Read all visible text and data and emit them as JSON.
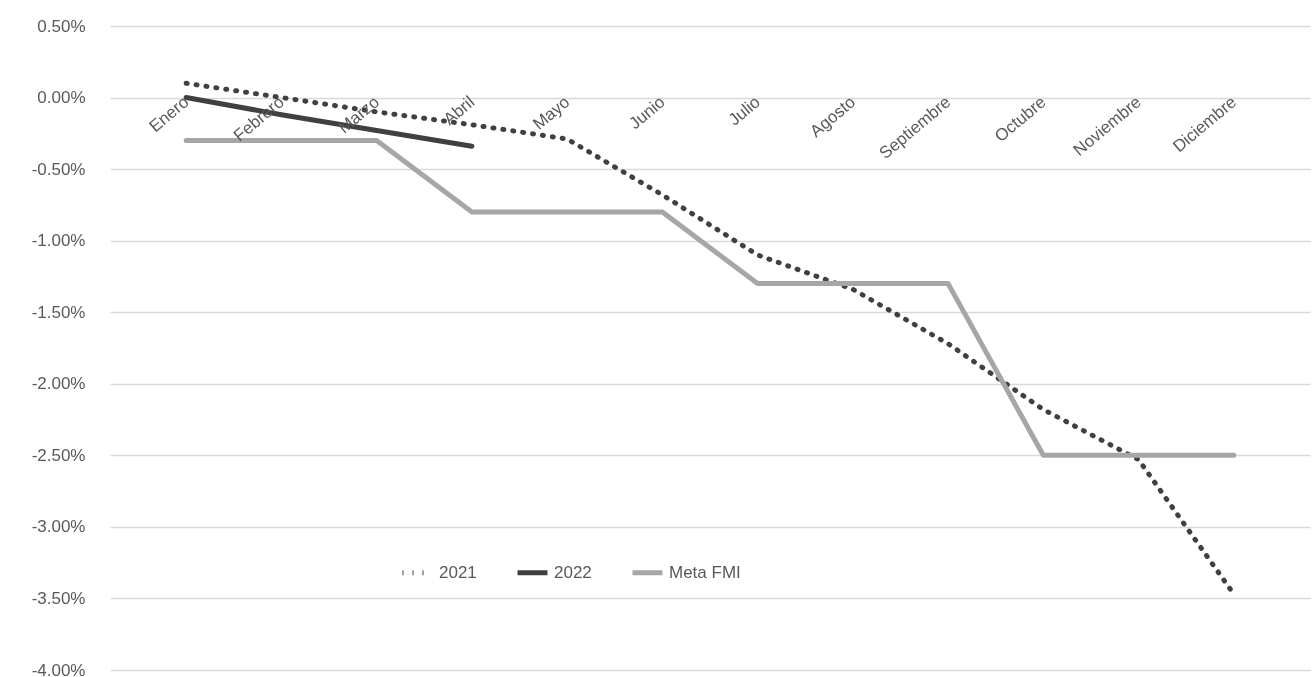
{
  "chart_data": {
    "type": "line",
    "categories": [
      "Enero",
      "Febrero",
      "Marzo",
      "Abril",
      "Mayo",
      "Junio",
      "Julio",
      "Agosto",
      "Septiembre",
      "Octubre",
      "Noviembre",
      "Diciembre"
    ],
    "series": [
      {
        "name": "2021",
        "color": "#404040",
        "line_style": "dotted",
        "values": [
          0.1,
          0.0,
          -0.1,
          -0.19,
          -0.29,
          -0.68,
          -1.1,
          -1.34,
          -1.72,
          -2.18,
          -2.53,
          -3.47
        ]
      },
      {
        "name": "2022",
        "color": "#404040",
        "line_style": "solid",
        "values": [
          0.0,
          -0.12,
          -0.23,
          -0.34,
          null,
          null,
          null,
          null,
          null,
          null,
          null,
          null
        ]
      },
      {
        "name": "Meta FMI",
        "color": "#a6a6a6",
        "line_style": "solid",
        "values": [
          -0.3,
          -0.3,
          -0.3,
          -0.8,
          -0.8,
          -0.8,
          -1.3,
          -1.3,
          -1.3,
          -2.5,
          -2.5,
          -2.5
        ]
      }
    ],
    "ylim": [
      -4,
      0.5
    ],
    "yticks": [
      {
        "value": 0.5,
        "label": "0.50%"
      },
      {
        "value": 0,
        "label": "0.00%"
      },
      {
        "value": -0.5,
        "label": "-0.50%"
      },
      {
        "value": -1,
        "label": "-1.00%"
      },
      {
        "value": -1.5,
        "label": "-1.50%"
      },
      {
        "value": -2,
        "label": "-2.00%"
      },
      {
        "value": -2.5,
        "label": "-2.50%"
      },
      {
        "value": -3,
        "label": "-3.00%"
      },
      {
        "value": -3.5,
        "label": "-3.50%"
      },
      {
        "value": -4,
        "label": "-4.00%"
      }
    ],
    "grid": "y",
    "legend": "bottom"
  }
}
